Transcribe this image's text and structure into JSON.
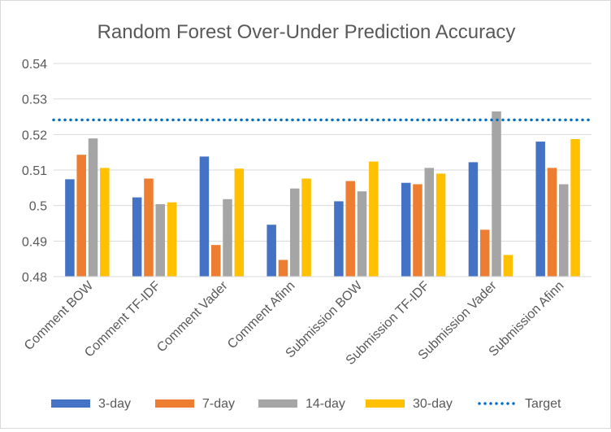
{
  "chart_data": {
    "type": "bar",
    "title": "Random Forest Over-Under Prediction Accuracy",
    "xlabel": "",
    "ylabel": "",
    "ylim": [
      0.48,
      0.54
    ],
    "yticks": [
      "0.48",
      "0.49",
      "0.5",
      "0.51",
      "0.52",
      "0.53",
      "0.54"
    ],
    "ytick_values": [
      0.48,
      0.49,
      0.5,
      0.51,
      0.52,
      0.53,
      0.54
    ],
    "grid": true,
    "legend_position": "bottom",
    "categories": [
      "Comment BOW",
      "Comment TF-IDF",
      "Comment Vader",
      "Comment Afinn",
      "Submission BOW",
      "Submission TF-IDF",
      "Submission Vader",
      "Submission Afinn"
    ],
    "series": [
      {
        "name": "3-day",
        "color": "#4472c4",
        "values": [
          0.5074,
          0.5023,
          0.5138,
          0.4946,
          0.5012,
          0.5064,
          0.5122,
          0.518
        ]
      },
      {
        "name": "7-day",
        "color": "#ed7d31",
        "values": [
          0.5143,
          0.5076,
          0.4889,
          0.4847,
          0.5069,
          0.506,
          0.4932,
          0.5106
        ]
      },
      {
        "name": "14-day",
        "color": "#a5a5a5",
        "values": [
          0.5189,
          0.5004,
          0.5018,
          0.5048,
          0.504,
          0.5106,
          0.5265,
          0.506
        ]
      },
      {
        "name": "30-day",
        "color": "#ffc000",
        "values": [
          0.5106,
          0.5009,
          0.5104,
          0.5076,
          0.5124,
          0.509,
          0.4861,
          0.5187
        ]
      }
    ],
    "target": {
      "name": "Target",
      "color": "#0070c0",
      "value": 0.5241
    }
  }
}
